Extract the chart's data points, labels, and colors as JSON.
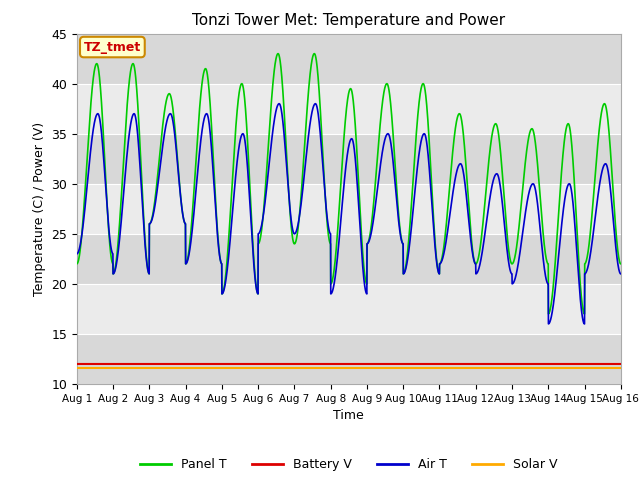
{
  "title": "Tonzi Tower Met: Temperature and Power",
  "xlabel": "Time",
  "ylabel": "Temperature (C) / Power (V)",
  "ylim": [
    10,
    45
  ],
  "xlim": [
    0,
    15
  ],
  "xtick_labels": [
    "Aug 1",
    "Aug 2",
    "Aug 3",
    "Aug 4",
    "Aug 5",
    "Aug 6",
    "Aug 7",
    "Aug 8",
    "Aug 9",
    "Aug 10",
    "Aug 11",
    "Aug 12",
    "Aug 13",
    "Aug 14",
    "Aug 15",
    "Aug 16"
  ],
  "ytick_values": [
    10,
    15,
    20,
    25,
    30,
    35,
    40,
    45
  ],
  "legend_labels": [
    "Panel T",
    "Battery V",
    "Air T",
    "Solar V"
  ],
  "legend_colors": [
    "#00cc00",
    "#dd0000",
    "#0000cc",
    "#ffaa00"
  ],
  "annotation_text": "TZ_tmet",
  "annotation_bg": "#ffffcc",
  "annotation_border": "#cc8800",
  "annotation_text_color": "#cc0000",
  "bg_color": "#e8e8e8",
  "band_color_light": "#ebebeb",
  "band_color_dark": "#d8d8d8",
  "panel_t_color": "#00cc00",
  "battery_v_color": "#dd0000",
  "air_t_color": "#0000cc",
  "solar_v_color": "#ffaa00",
  "battery_v_value": 12.0,
  "solar_v_value": 11.6
}
